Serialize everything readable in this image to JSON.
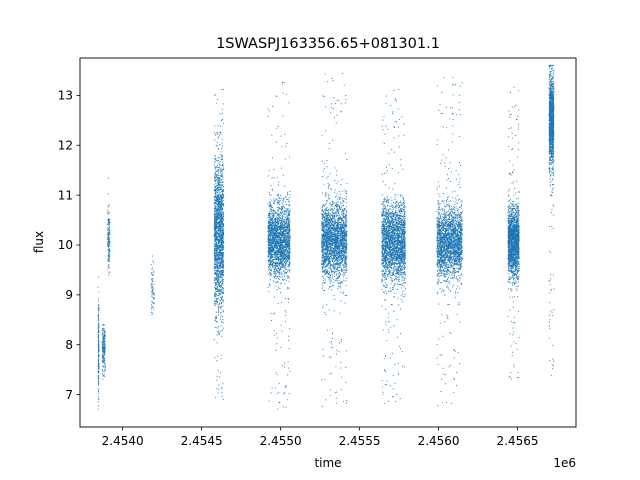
{
  "chart_data": {
    "type": "scatter",
    "title": "1SWASPJ163356.65+081301.1",
    "xlabel": "time",
    "ylabel": "flux",
    "x_offset_label": "1e6",
    "xlim": [
      2453730,
      2456870
    ],
    "ylim": [
      6.35,
      13.75
    ],
    "x_ticks": [
      {
        "value": 2454000,
        "label": "2.4540"
      },
      {
        "value": 2454500,
        "label": "2.4545"
      },
      {
        "value": 2455000,
        "label": "2.4550"
      },
      {
        "value": 2455500,
        "label": "2.4555"
      },
      {
        "value": 2456000,
        "label": "2.4560"
      },
      {
        "value": 2456500,
        "label": "2.4565"
      }
    ],
    "y_ticks": [
      {
        "value": 7,
        "label": "7"
      },
      {
        "value": 8,
        "label": "8"
      },
      {
        "value": 9,
        "label": "9"
      },
      {
        "value": 10,
        "label": "10"
      },
      {
        "value": 11,
        "label": "11"
      },
      {
        "value": 12,
        "label": "12"
      },
      {
        "value": 13,
        "label": "13"
      }
    ],
    "grid": false,
    "marker_color": "#1f77b4",
    "observing_seasons": [
      {
        "x_start": 2453845,
        "x_end": 2453850,
        "y_center": 7.9,
        "y_spread": 0.45,
        "y_min": 6.7,
        "y_max": 9.5,
        "points": 180
      },
      {
        "x_start": 2453870,
        "x_end": 2453890,
        "y_center": 7.9,
        "y_spread": 0.25,
        "y_min": 7.3,
        "y_max": 8.4,
        "points": 200
      },
      {
        "x_start": 2453905,
        "x_end": 2453920,
        "y_center": 10.1,
        "y_spread": 0.3,
        "y_min": 9.4,
        "y_max": 11.45,
        "points": 160
      },
      {
        "x_start": 2454180,
        "x_end": 2454200,
        "y_center": 9.1,
        "y_spread": 0.3,
        "y_min": 8.6,
        "y_max": 9.8,
        "points": 60
      },
      {
        "x_start": 2454580,
        "x_end": 2454640,
        "y_center": 10.2,
        "y_spread": 0.75,
        "y_min": 6.9,
        "y_max": 13.2,
        "points": 1800
      },
      {
        "x_start": 2454920,
        "x_end": 2455060,
        "y_center": 10.1,
        "y_spread": 0.35,
        "y_min": 6.7,
        "y_max": 13.3,
        "points": 2200
      },
      {
        "x_start": 2455260,
        "x_end": 2455420,
        "y_center": 10.1,
        "y_spread": 0.38,
        "y_min": 6.75,
        "y_max": 13.55,
        "points": 2400
      },
      {
        "x_start": 2455640,
        "x_end": 2455790,
        "y_center": 10.05,
        "y_spread": 0.38,
        "y_min": 6.8,
        "y_max": 13.15,
        "points": 2400
      },
      {
        "x_start": 2455990,
        "x_end": 2456150,
        "y_center": 10.05,
        "y_spread": 0.35,
        "y_min": 6.75,
        "y_max": 13.5,
        "points": 2300
      },
      {
        "x_start": 2456440,
        "x_end": 2456510,
        "y_center": 10.05,
        "y_spread": 0.33,
        "y_min": 7.3,
        "y_max": 13.25,
        "points": 1900
      },
      {
        "x_start": 2456700,
        "x_end": 2456730,
        "y_center": 12.5,
        "y_spread": 0.45,
        "y_min": 7.3,
        "y_max": 13.6,
        "points": 1300
      }
    ]
  }
}
